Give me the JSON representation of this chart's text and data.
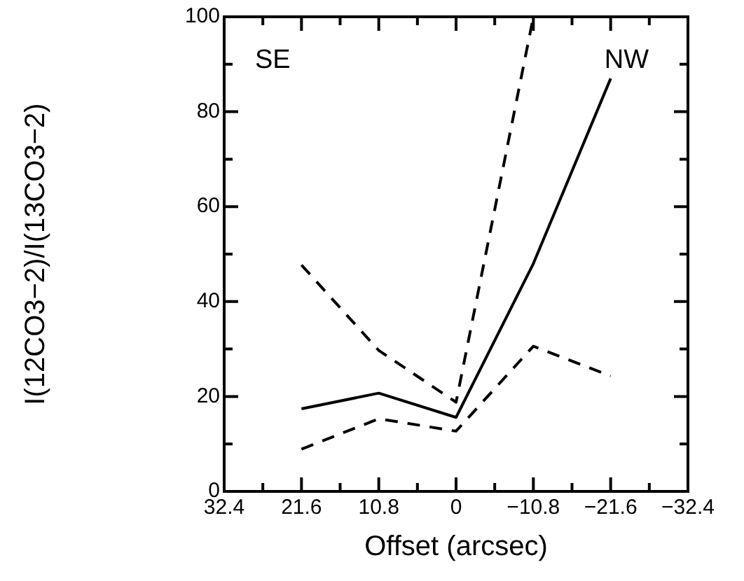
{
  "chart_data": {
    "type": "line",
    "xlabel": "Offset (arcsec)",
    "ylabel": "I(12CO3−2)/I(13CO3−2)",
    "x": [
      21.6,
      10.8,
      0,
      -10.8,
      -21.6
    ],
    "series": [
      {
        "color": "#000000",
        "line_style": "solid",
        "values": [
          17.4,
          20.7,
          15.6,
          48,
          87
        ]
      },
      {
        "color": "#000000",
        "line_style": "dashed",
        "values": [
          47.7,
          29.7,
          18.8,
          100,
          null
        ]
      },
      {
        "color": "#000000",
        "line_style": "dashed",
        "values": [
          8.9,
          15.3,
          12.7,
          30.6,
          24.3
        ]
      }
    ],
    "xlim": [
      32.4,
      -32.4
    ],
    "xticks": [
      32.4,
      {
        "value": 27,
        "label": null
      },
      21.6,
      {
        "value": 16.2,
        "label": null
      },
      10.8,
      {
        "value": 5.4,
        "label": null
      },
      0,
      {
        "value": -5.4,
        "label": null
      },
      -10.8,
      {
        "value": -16.2,
        "label": null
      },
      -21.6,
      {
        "value": -27,
        "label": null
      },
      -32.4
    ],
    "ylim": [
      0,
      100
    ],
    "yticks": [
      0,
      {
        "value": 10,
        "label": null
      },
      20,
      {
        "value": 30,
        "label": null
      },
      40,
      {
        "value": 50,
        "label": null
      },
      60,
      {
        "value": 70,
        "label": null
      },
      80,
      {
        "value": 90,
        "label": null
      },
      100
    ],
    "annotations": [
      "SE",
      "NW"
    ],
    "grid": false,
    "legend": false,
    "marker": "none"
  }
}
